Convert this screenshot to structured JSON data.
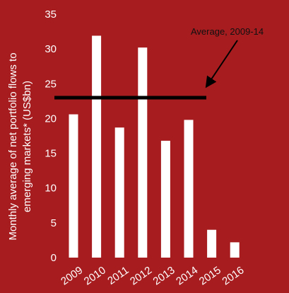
{
  "colors": {
    "background": "#A61C1F",
    "bar": "#FFFFFF",
    "average_line": "#000000",
    "text": "#FFFFFF",
    "annotation_text": "#111111"
  },
  "chart_data": {
    "type": "bar",
    "categories": [
      "2009",
      "2010",
      "2011",
      "2012",
      "2013",
      "2014",
      "2015",
      "2016"
    ],
    "values": [
      20.6,
      31.9,
      18.7,
      30.2,
      16.8,
      19.8,
      4.0,
      2.2
    ],
    "ylabel_line1": "Monthly average of net portfolio flows to",
    "ylabel_line2": "emerging markets* (US$bn)",
    "ylim": [
      0,
      35
    ],
    "yticks": [
      0,
      5,
      10,
      15,
      20,
      25,
      30,
      35
    ],
    "grid": false,
    "average": {
      "label": "Average, 2009-14",
      "value": 23,
      "from_category": "2009",
      "to_category": "2014"
    }
  }
}
